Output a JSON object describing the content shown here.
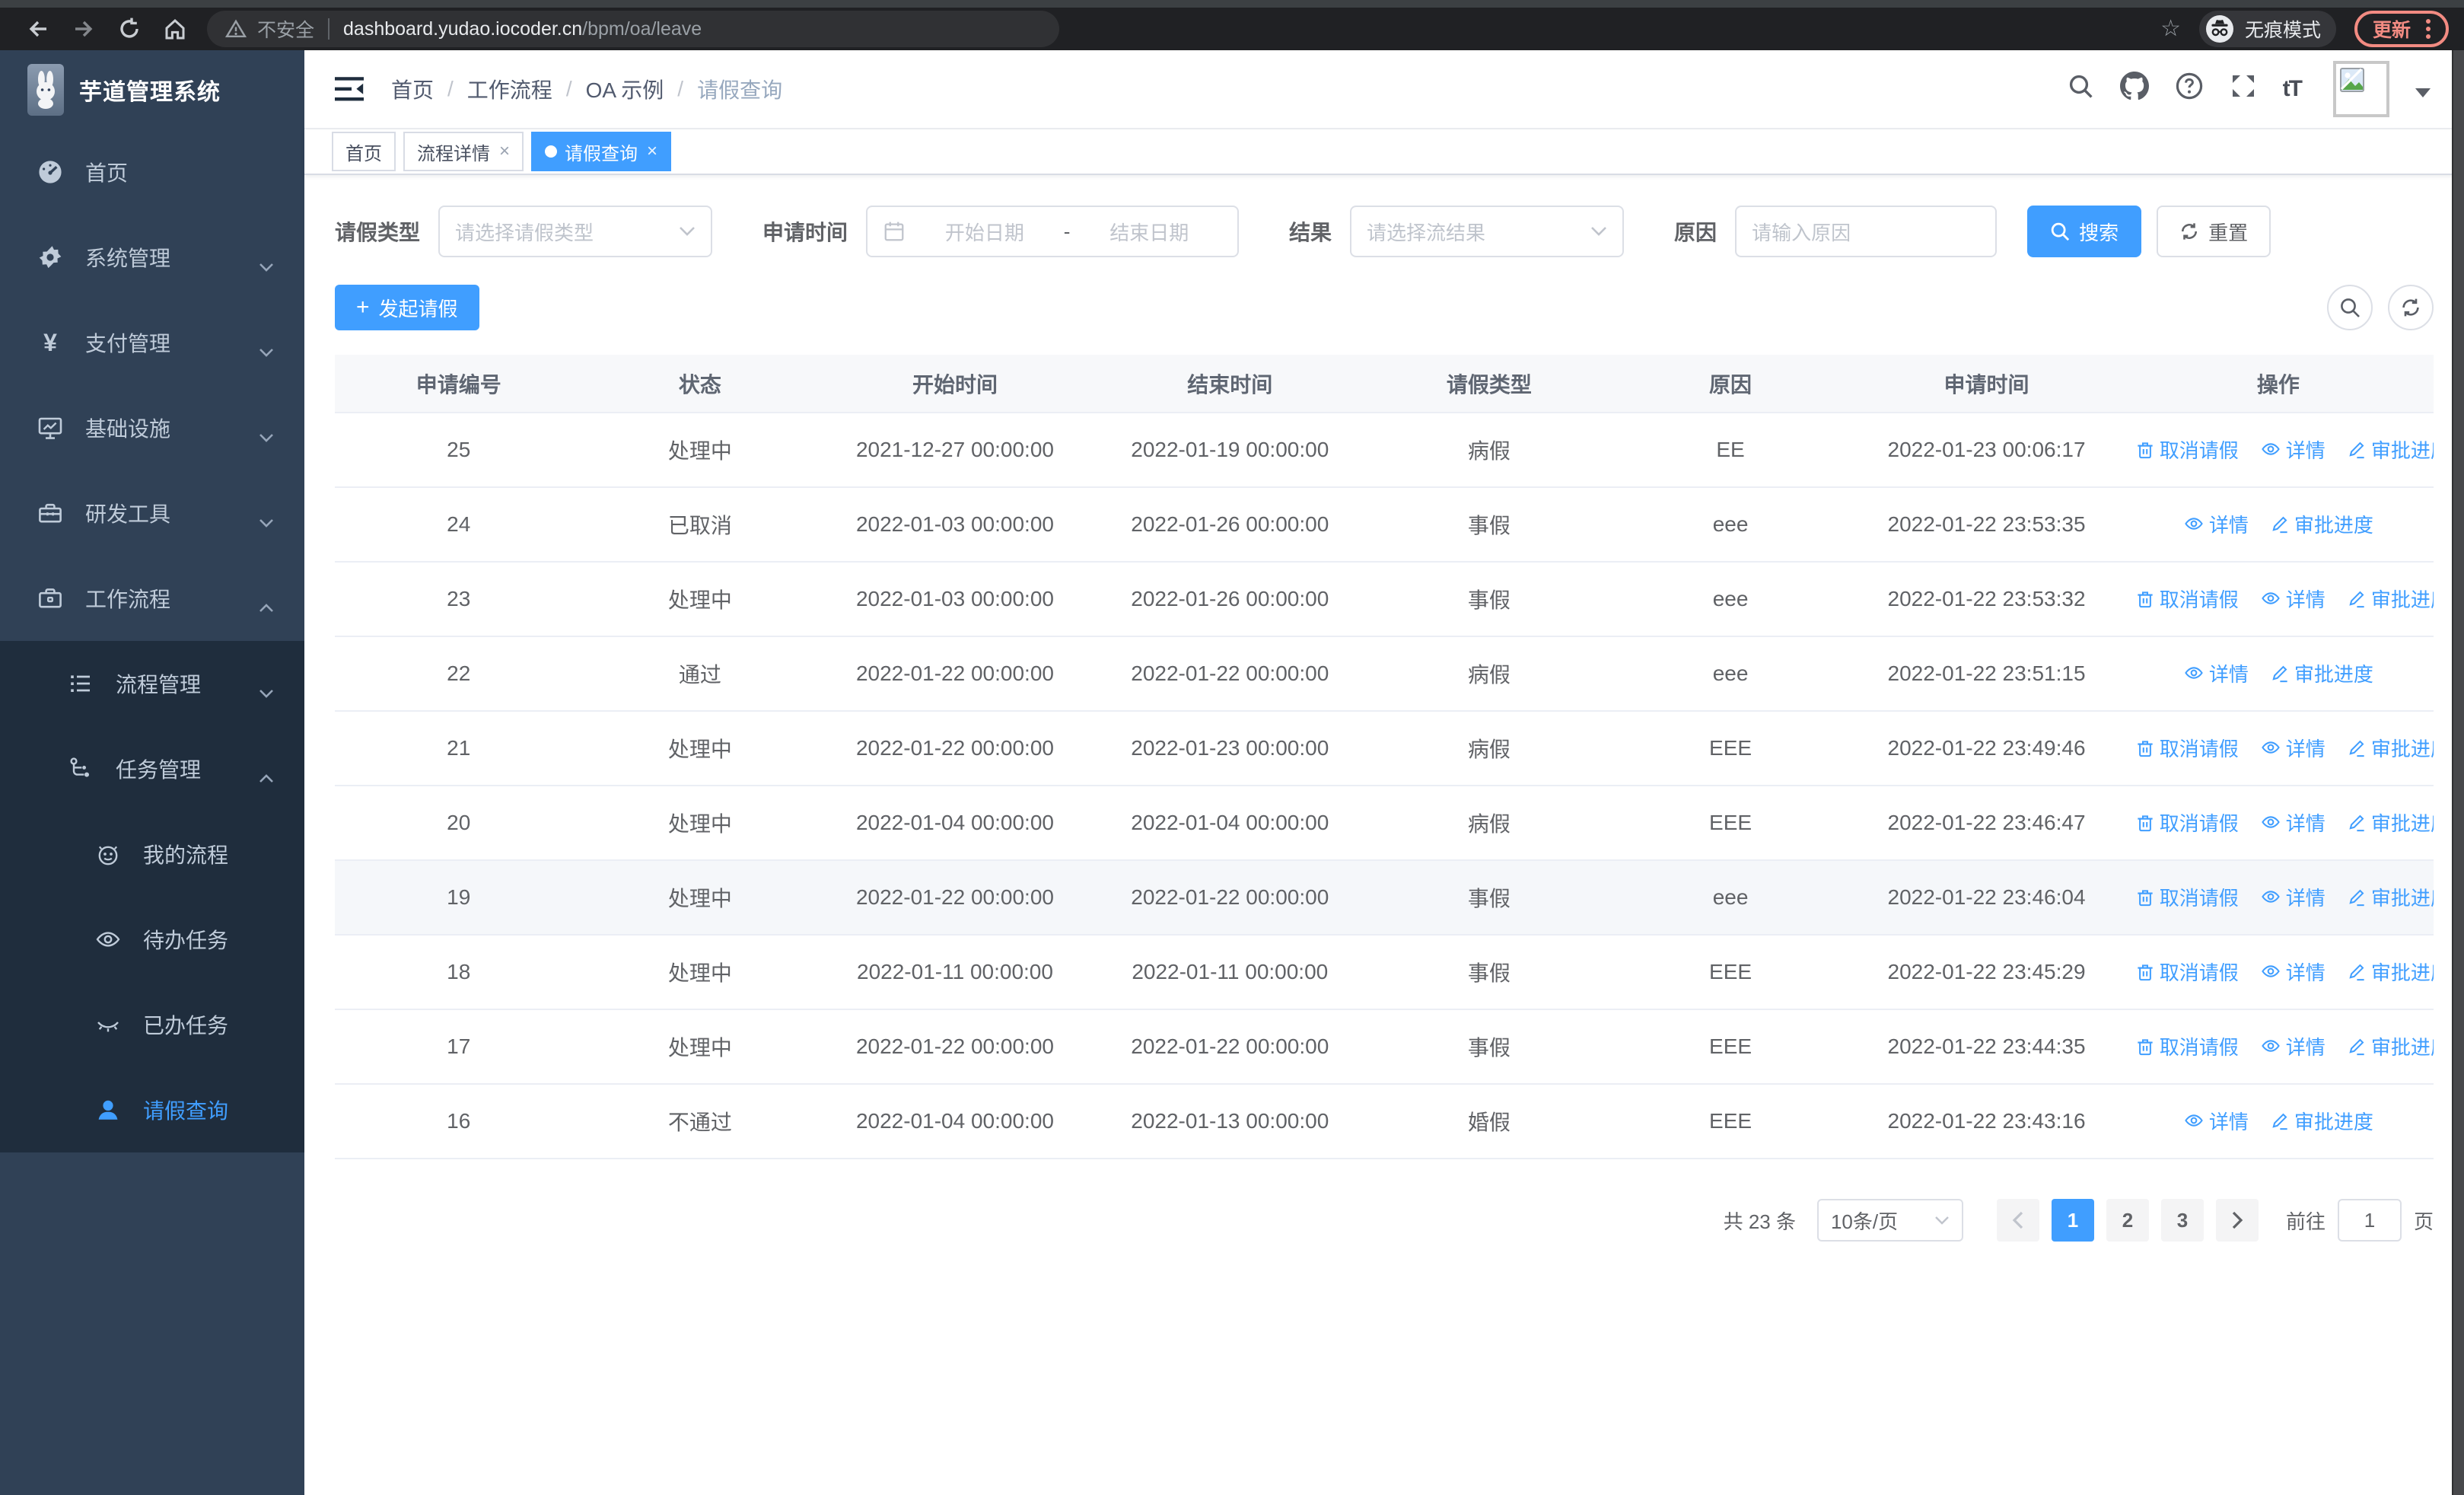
{
  "browser": {
    "security_label": "不安全",
    "url_host": "dashboard.yudao.iocoder.cn",
    "url_path": "/bpm/oa/leave",
    "incognito_label": "无痕模式",
    "update_label": "更新"
  },
  "sidebar": {
    "logo_title": "芋道管理系统",
    "items": {
      "home": "首页",
      "system": "系统管理",
      "payment": "支付管理",
      "infra": "基础设施",
      "devtools": "研发工具",
      "workflow": "工作流程",
      "process_mgmt": "流程管理",
      "task_mgmt": "任务管理",
      "my_process": "我的流程",
      "todo_tasks": "待办任务",
      "done_tasks": "已办任务",
      "leave_query": "请假查询"
    }
  },
  "header": {
    "breadcrumb": [
      "首页",
      "工作流程",
      "OA 示例",
      "请假查询"
    ]
  },
  "tabs": [
    {
      "label": "首页"
    },
    {
      "label": "流程详情"
    },
    {
      "label": "请假查询"
    }
  ],
  "filters": {
    "leave_type_label": "请假类型",
    "leave_type_placeholder": "请选择请假类型",
    "apply_time_label": "申请时间",
    "date_start_placeholder": "开始日期",
    "date_separator": "-",
    "date_end_placeholder": "结束日期",
    "result_label": "结果",
    "result_placeholder": "请选择流结果",
    "reason_label": "原因",
    "reason_placeholder": "请输入原因",
    "search_label": "搜索",
    "reset_label": "重置"
  },
  "toolbar": {
    "create_label": "发起请假"
  },
  "table": {
    "headers": [
      "申请编号",
      "状态",
      "开始时间",
      "结束时间",
      "请假类型",
      "原因",
      "申请时间",
      "操作"
    ],
    "op_labels": {
      "cancel": "取消请假",
      "detail": "详情",
      "progress": "审批进度"
    },
    "rows": [
      {
        "id": "25",
        "status": "处理中",
        "start": "2021-12-27 00:00:00",
        "end": "2022-01-19 00:00:00",
        "type": "病假",
        "reason": "EE",
        "applied": "2022-01-23 00:06:17",
        "ops": [
          "cancel",
          "detail",
          "progress"
        ],
        "highlight": false
      },
      {
        "id": "24",
        "status": "已取消",
        "start": "2022-01-03 00:00:00",
        "end": "2022-01-26 00:00:00",
        "type": "事假",
        "reason": "eee",
        "applied": "2022-01-22 23:53:35",
        "ops": [
          "detail",
          "progress"
        ],
        "highlight": false
      },
      {
        "id": "23",
        "status": "处理中",
        "start": "2022-01-03 00:00:00",
        "end": "2022-01-26 00:00:00",
        "type": "事假",
        "reason": "eee",
        "applied": "2022-01-22 23:53:32",
        "ops": [
          "cancel",
          "detail",
          "progress"
        ],
        "highlight": false
      },
      {
        "id": "22",
        "status": "通过",
        "start": "2022-01-22 00:00:00",
        "end": "2022-01-22 00:00:00",
        "type": "病假",
        "reason": "eee",
        "applied": "2022-01-22 23:51:15",
        "ops": [
          "detail",
          "progress"
        ],
        "highlight": false
      },
      {
        "id": "21",
        "status": "处理中",
        "start": "2022-01-22 00:00:00",
        "end": "2022-01-23 00:00:00",
        "type": "病假",
        "reason": "EEE",
        "applied": "2022-01-22 23:49:46",
        "ops": [
          "cancel",
          "detail",
          "progress"
        ],
        "highlight": false
      },
      {
        "id": "20",
        "status": "处理中",
        "start": "2022-01-04 00:00:00",
        "end": "2022-01-04 00:00:00",
        "type": "病假",
        "reason": "EEE",
        "applied": "2022-01-22 23:46:47",
        "ops": [
          "cancel",
          "detail",
          "progress"
        ],
        "highlight": false
      },
      {
        "id": "19",
        "status": "处理中",
        "start": "2022-01-22 00:00:00",
        "end": "2022-01-22 00:00:00",
        "type": "事假",
        "reason": "eee",
        "applied": "2022-01-22 23:46:04",
        "ops": [
          "cancel",
          "detail",
          "progress"
        ],
        "highlight": true
      },
      {
        "id": "18",
        "status": "处理中",
        "start": "2022-01-11 00:00:00",
        "end": "2022-01-11 00:00:00",
        "type": "事假",
        "reason": "EEE",
        "applied": "2022-01-22 23:45:29",
        "ops": [
          "cancel",
          "detail",
          "progress"
        ],
        "highlight": false
      },
      {
        "id": "17",
        "status": "处理中",
        "start": "2022-01-22 00:00:00",
        "end": "2022-01-22 00:00:00",
        "type": "事假",
        "reason": "EEE",
        "applied": "2022-01-22 23:44:35",
        "ops": [
          "cancel",
          "detail",
          "progress"
        ],
        "highlight": false
      },
      {
        "id": "16",
        "status": "不通过",
        "start": "2022-01-04 00:00:00",
        "end": "2022-01-13 00:00:00",
        "type": "婚假",
        "reason": "EEE",
        "applied": "2022-01-22 23:43:16",
        "ops": [
          "detail",
          "progress"
        ],
        "highlight": false
      }
    ]
  },
  "pagination": {
    "total": "共 23 条",
    "page_size": "10条/页",
    "pages": [
      "1",
      "2",
      "3"
    ],
    "active_page": "1",
    "goto_label": "前往",
    "goto_value": "1",
    "unit_label": "页"
  },
  "colors": {
    "accent": "#409eff",
    "sidebar_bg": "#304156",
    "submenu_bg": "#1f2d3d",
    "sidebar_text": "#bfcbd9",
    "update_accent": "#f28b82",
    "table_border": "#ebeef5"
  }
}
